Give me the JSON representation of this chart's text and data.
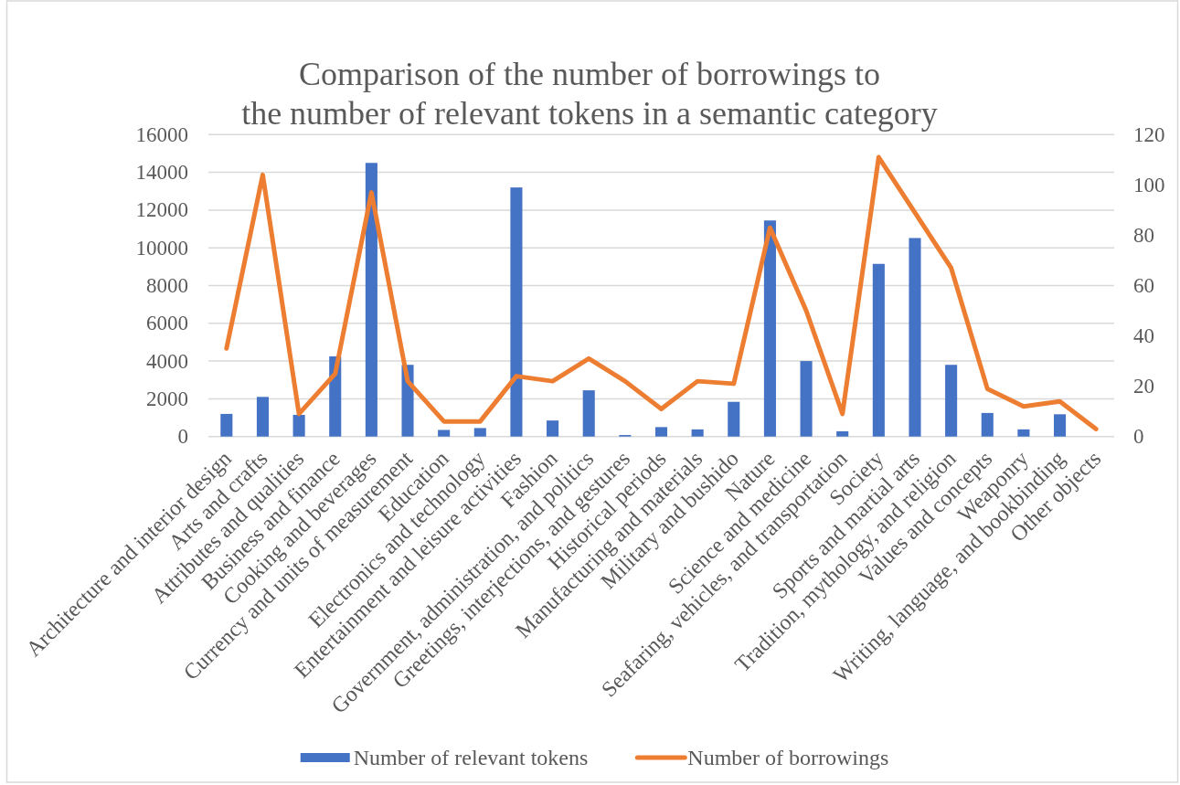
{
  "chart_data": {
    "type": "bar",
    "title": "Comparison of the number of borrowings to\nthe number of relevant tokens in a semantic category",
    "categories": [
      "Architecture and interior design",
      "Arts and crafts",
      "Attributes and qualities",
      "Business and finance",
      "Cooking and beverages",
      "Currency and units of measurement",
      "Education",
      "Electronics and technology",
      "Entertainment and leisure activities",
      "Fashion",
      "Government, administration, and politics",
      "Greetings, interjections, and gestures",
      "Historical periods",
      "Manufacturing and materials",
      "Military and bushido",
      "Nature",
      "Science and medicine",
      "Seafaring, vehicles, and transportation",
      "Society",
      "Sports and martial arts",
      "Tradition, mythology, and religion",
      "Values and concepts",
      "Weaponry",
      "Writing, language, and bookbinding",
      "Other objects"
    ],
    "series": [
      {
        "name": "Number of relevant tokens",
        "color": "#4472c4",
        "values": [
          1200,
          2100,
          1150,
          4250,
          14500,
          3800,
          350,
          450,
          13200,
          850,
          2450,
          80,
          500,
          380,
          1840,
          11450,
          4000,
          280,
          9150,
          10520,
          3800,
          1250,
          380,
          1180,
          0
        ]
      },
      {
        "name": "Number of borrowings",
        "type": "line",
        "axis": "y2",
        "color": "#ed7d31",
        "values": [
          35,
          104,
          9,
          25,
          97,
          22,
          6,
          6,
          24,
          22,
          31,
          22,
          11,
          22,
          21,
          83,
          50,
          9,
          111,
          89,
          67,
          19,
          12,
          14,
          3
        ]
      }
    ],
    "ylim": [
      0,
      16000
    ],
    "yticks": [
      0,
      2000,
      4000,
      6000,
      8000,
      10000,
      12000,
      14000,
      16000
    ],
    "y2lim": [
      0,
      120
    ],
    "y2ticks": [
      0,
      20,
      40,
      60,
      80,
      100,
      120
    ],
    "grid": "y",
    "legend": "bottom"
  }
}
